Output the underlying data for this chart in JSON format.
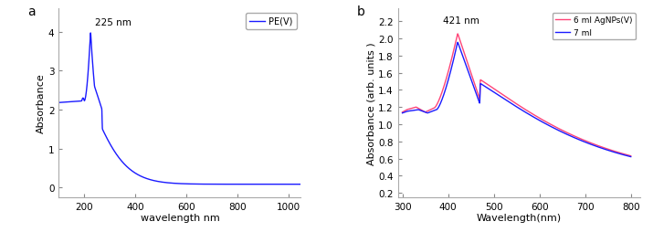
{
  "panel_a": {
    "label": "a",
    "xlabel": "wavelength nm",
    "ylabel": "Absorbance",
    "legend_label": "PE(V)",
    "line_color": "#1a1aff",
    "annotation": "225 nm",
    "xlim": [
      100,
      1050
    ],
    "ylim": [
      -0.25,
      4.6
    ],
    "yticks": [
      0,
      1,
      2,
      3,
      4
    ],
    "xticks": [
      200,
      400,
      600,
      800,
      1000
    ]
  },
  "panel_b": {
    "label": "b",
    "xlabel": "Wavelength(nm)",
    "ylabel": "Absorbance (arb. units )",
    "legend_label_1": "6 ml AgNPs(V)",
    "legend_label_2": "7 ml",
    "line_color_1": "#ff4477",
    "line_color_2": "#1a1aff",
    "annotation": "421 nm",
    "xlim": [
      290,
      820
    ],
    "ylim": [
      0.15,
      2.35
    ],
    "yticks": [
      0.2,
      0.4,
      0.6,
      0.8,
      1.0,
      1.2,
      1.4,
      1.6,
      1.8,
      2.0,
      2.2
    ],
    "xticks": [
      300,
      400,
      500,
      600,
      700,
      800
    ]
  },
  "background_color": "#ffffff"
}
